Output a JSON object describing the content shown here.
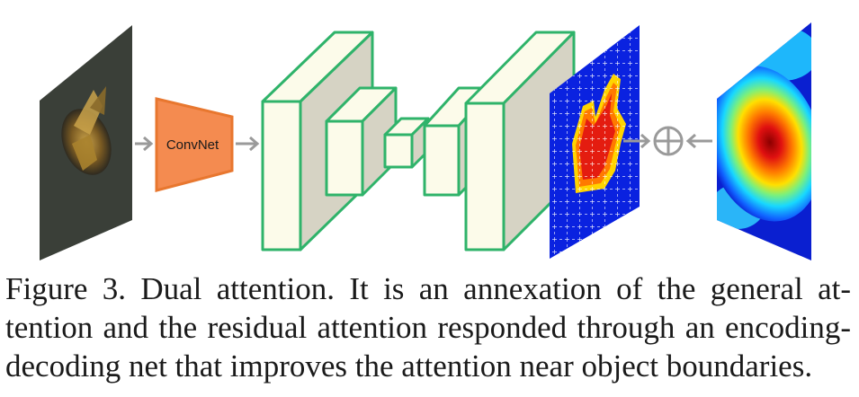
{
  "diagram": {
    "encoder_label": "ConvNet",
    "colors": {
      "encoder_fill": "#f48b50",
      "encoder_stroke": "#e8772f",
      "block_stroke": "#2fb36a",
      "block_front": "#fcfbea",
      "block_side": "#d6d3c4",
      "arrow": "#9a9a9a"
    },
    "icons": [
      "butterfly-input-image",
      "residual-attention-map",
      "sum-operator-icon",
      "general-attention-map"
    ]
  },
  "caption": {
    "line1": "Figure 3. Dual attention.  It is an annexation of the general at-",
    "line2": "tention and the residual attention responded through an encoding-",
    "line3": "decoding net that improves the attention near object boundaries."
  }
}
